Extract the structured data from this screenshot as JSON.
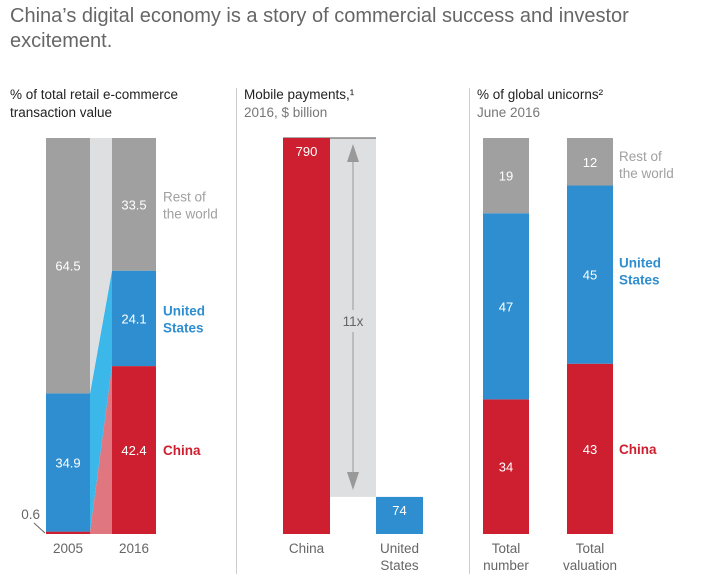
{
  "title": "China’s digital economy is a story of commercial success and investor excitement.",
  "colors": {
    "china": "#cd1f2f",
    "us": "#2e8ecf",
    "rest": "#a0a0a0",
    "band": "#dedfe0",
    "china_band": "#e07780",
    "us_band": "#3bb7ea",
    "china_text": "#cd1f2f",
    "us_text": "#2e8ecf",
    "rest_text": "#a0a0a0"
  },
  "panels": [
    {
      "title": "% of total retail e-commerce transaction value",
      "subtitle": ""
    },
    {
      "title": "Mobile payments,¹",
      "subtitle": "2016, $ billion"
    },
    {
      "title": "% of global unicorns²",
      "subtitle": "June 2016"
    }
  ],
  "chart_data": [
    {
      "type": "bar",
      "stacked": true,
      "title": "% of total retail e-commerce transaction value",
      "categories": [
        "2005",
        "2016"
      ],
      "series": [
        {
          "name": "China",
          "values": [
            0.6,
            42.4
          ]
        },
        {
          "name": "United States",
          "values": [
            34.9,
            24.1
          ]
        },
        {
          "name": "Rest of the world",
          "values": [
            64.5,
            33.5
          ]
        }
      ],
      "legend": {
        "china": "China",
        "us": "United States",
        "rest": "Rest of the world"
      },
      "legend_placement": "right",
      "ylim": [
        0,
        100
      ]
    },
    {
      "type": "bar",
      "title": "Mobile payments,¹",
      "subtitle": "2016, $ billion",
      "categories": [
        "China",
        "United States"
      ],
      "values": [
        790,
        74
      ],
      "annotation": "11x",
      "ylim": [
        0,
        790
      ]
    },
    {
      "type": "bar",
      "stacked": true,
      "title": "% of global unicorns²",
      "subtitle": "June 2016",
      "categories": [
        "Total number",
        "Total valuation"
      ],
      "series": [
        {
          "name": "China",
          "values": [
            34,
            43
          ]
        },
        {
          "name": "United States",
          "values": [
            47,
            45
          ]
        },
        {
          "name": "Rest of the world",
          "values": [
            19,
            12
          ]
        }
      ],
      "legend": {
        "china": "China",
        "us": "United States",
        "rest": "Rest of the world"
      },
      "legend_placement": "right",
      "ylim": [
        0,
        100
      ]
    }
  ]
}
